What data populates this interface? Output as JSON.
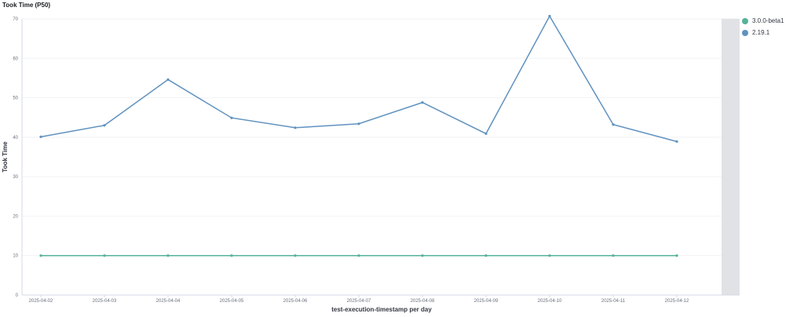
{
  "panel": {
    "title": "Took Time (P50)"
  },
  "legend": [
    {
      "label": "3.0.0-beta1",
      "color": "#54b399"
    },
    {
      "label": "2.19.1",
      "color": "#6092c0"
    }
  ],
  "chart_data": {
    "type": "line",
    "xlabel": "test-execution-timestamp per day",
    "ylabel": "Took Time",
    "ylim": [
      0,
      70
    ],
    "yticks": [
      0,
      10,
      20,
      30,
      40,
      50,
      60,
      70
    ],
    "categories": [
      "2025-04-02",
      "2025-04-03",
      "2025-04-04",
      "2025-04-05",
      "2025-04-06",
      "2025-04-07",
      "2025-04-08",
      "2025-04-09",
      "2025-04-10",
      "2025-04-11",
      "2025-04-12"
    ],
    "series": [
      {
        "name": "3.0.0-beta1",
        "color": "#54b399",
        "values": [
          10,
          10,
          10,
          10,
          10,
          10,
          10,
          10,
          10,
          10,
          10
        ]
      },
      {
        "name": "2.19.1",
        "color": "#6092c0",
        "values": [
          40.1,
          43.0,
          54.6,
          44.9,
          42.4,
          43.4,
          48.8,
          40.9,
          70.7,
          43.2,
          38.9
        ]
      }
    ]
  }
}
